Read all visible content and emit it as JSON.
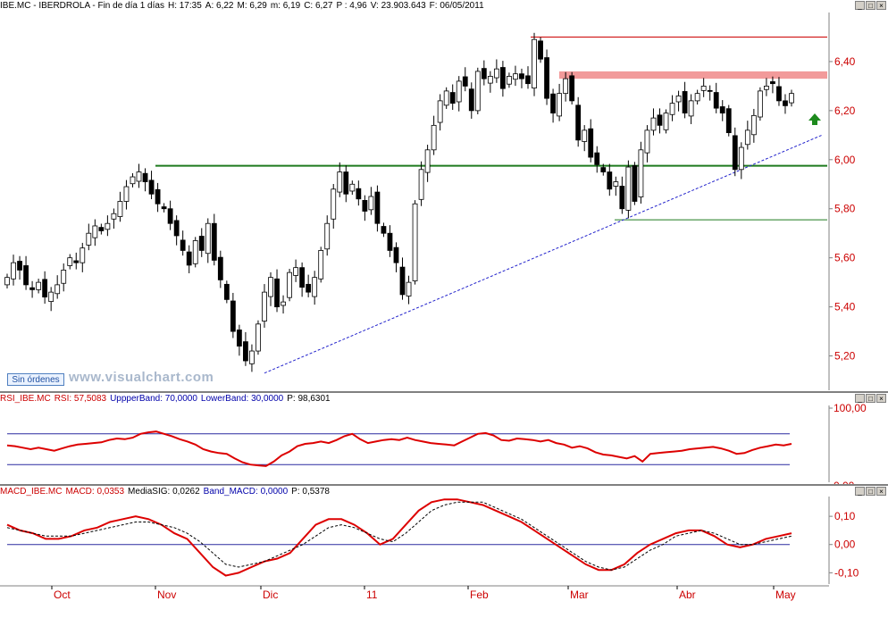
{
  "price_panel": {
    "header": [
      "IBE.MC - IBERDROLA - Fin de día 1 días",
      "H: 17:35",
      "A: 6,22",
      "M: 6,29",
      "m: 6,19",
      "C: 6,27",
      "P : 4,96",
      "V: 23.903.643",
      "F: 06/05/2011"
    ],
    "badge": "Sin órdenes",
    "watermark": "www.visualchart.com"
  },
  "rsi_panel": {
    "header": [
      "RSI_IBE.MC",
      "RSI: 57,5083",
      "UppperBand: 70,0000",
      "LowerBand: 30,0000",
      "P: 98,6301"
    ]
  },
  "macd_panel": {
    "header": [
      "MACD_IBE.MC",
      "MACD: 0,0353",
      "MediaSIG: 0,0262",
      "Band_MACD: 0,0000",
      "P: 0,5378"
    ]
  },
  "window_buttons": [
    "_",
    "□",
    "×"
  ],
  "colors": {
    "up": "#ffffff",
    "down": "#000000",
    "axis_text": "#cc0000",
    "support": "#1d7a1d",
    "resistance_fill": "#f29a9a",
    "trend": "#2222cc",
    "rsi": "#dd0000",
    "macd": "#dd0000",
    "band": "#2a2aa0"
  },
  "chart_data": [
    {
      "type": "candlestick",
      "title": "IBE.MC - IBERDROLA - Fin de día 1 días",
      "x_tick_labels": [
        "Oct",
        "Nov",
        "Dic",
        "11",
        "Feb",
        "Mar",
        "Abr",
        "May"
      ],
      "y_tick_labels": [
        "5,20",
        "5,40",
        "5,60",
        "5,80",
        "6,00",
        "6,20",
        "6,40"
      ],
      "ylim": [
        5.06,
        6.6
      ],
      "series_close": [
        5.52,
        5.58,
        5.55,
        5.49,
        5.47,
        5.5,
        5.44,
        5.46,
        5.49,
        5.55,
        5.6,
        5.58,
        5.64,
        5.7,
        5.73,
        5.71,
        5.74,
        5.78,
        5.83,
        5.89,
        5.93,
        5.95,
        5.91,
        5.86,
        5.82,
        5.8,
        5.74,
        5.69,
        5.63,
        5.57,
        5.67,
        5.63,
        5.74,
        5.59,
        5.51,
        5.43,
        5.3,
        5.24,
        5.18,
        5.22,
        5.33,
        5.46,
        5.52,
        5.4,
        5.42,
        5.54,
        5.56,
        5.48,
        5.46,
        5.52,
        5.63,
        5.74,
        5.88,
        5.95,
        5.86,
        5.9,
        5.84,
        5.79,
        5.85,
        5.74,
        5.7,
        5.63,
        5.58,
        5.45,
        5.5,
        5.82,
        5.96,
        6.04,
        6.14,
        6.24,
        6.28,
        6.23,
        6.32,
        6.3,
        6.2,
        6.36,
        6.33,
        6.34,
        6.37,
        6.29,
        6.34,
        6.35,
        6.33,
        6.31,
        6.49,
        6.41,
        6.25,
        6.19,
        6.27,
        6.33,
        6.24,
        6.08,
        6.12,
        6.01,
        5.98,
        5.95,
        5.88,
        5.91,
        5.8,
        5.97,
        5.83,
        6.04,
        6.12,
        6.17,
        6.14,
        6.19,
        6.23,
        6.26,
        6.19,
        6.24,
        6.27,
        6.3,
        6.28,
        6.21,
        6.19,
        6.11,
        5.96,
        6.05,
        6.12,
        6.18,
        6.28,
        6.3,
        6.31,
        6.24,
        6.22,
        6.27
      ],
      "annotations": {
        "resistance_band": [
          6.33,
          6.36
        ],
        "upper_line": 6.5,
        "support_line": 5.975,
        "lower_line": 5.755
      },
      "grid": false,
      "legend": "none"
    },
    {
      "type": "line",
      "title": "RSI_IBE.MC",
      "y_tick_labels": [
        "100,00",
        "0,00"
      ],
      "ylim": [
        0,
        100
      ],
      "bands": [
        70,
        30
      ],
      "series": [
        {
          "name": "RSI",
          "values": [
            55,
            54,
            52,
            50,
            52,
            50,
            48,
            51,
            54,
            56,
            57,
            58,
            59,
            62,
            64,
            63,
            65,
            70,
            72,
            73,
            70,
            67,
            63,
            60,
            56,
            50,
            47,
            45,
            44,
            38,
            33,
            30,
            29,
            28,
            34,
            42,
            47,
            54,
            57,
            58,
            60,
            58,
            62,
            67,
            70,
            63,
            58,
            60,
            62,
            63,
            62,
            65,
            62,
            60,
            58,
            57,
            56,
            55,
            60,
            65,
            70,
            71,
            68,
            62,
            61,
            64,
            63,
            62,
            60,
            62,
            58,
            56,
            52,
            54,
            51,
            46,
            43,
            42,
            40,
            38,
            41,
            34,
            44,
            45,
            46,
            47,
            48,
            50,
            51,
            52,
            53,
            51,
            48,
            44,
            45,
            49,
            52,
            54,
            56,
            55,
            57
          ]
        }
      ]
    },
    {
      "type": "line",
      "title": "MACD_IBE.MC",
      "y_tick_labels": [
        "0,10",
        "0,00",
        "-0,10"
      ],
      "ylim": [
        -0.14,
        0.17
      ],
      "band": 0.0,
      "series": [
        {
          "name": "MACD",
          "values": [
            0.07,
            0.05,
            0.04,
            0.02,
            0.02,
            0.03,
            0.05,
            0.06,
            0.08,
            0.09,
            0.1,
            0.09,
            0.07,
            0.04,
            0.02,
            -0.03,
            -0.08,
            -0.11,
            -0.1,
            -0.08,
            -0.06,
            -0.05,
            -0.03,
            0.02,
            0.07,
            0.09,
            0.09,
            0.07,
            0.04,
            0.0,
            0.02,
            0.07,
            0.12,
            0.15,
            0.16,
            0.16,
            0.15,
            0.14,
            0.12,
            0.1,
            0.08,
            0.05,
            0.02,
            -0.01,
            -0.04,
            -0.07,
            -0.09,
            -0.09,
            -0.07,
            -0.03,
            0.0,
            0.02,
            0.04,
            0.05,
            0.05,
            0.03,
            0.0,
            -0.01,
            0.0,
            0.02,
            0.03,
            0.04
          ]
        },
        {
          "name": "MediaSIG",
          "values": [
            0.06,
            0.05,
            0.04,
            0.03,
            0.03,
            0.03,
            0.04,
            0.05,
            0.06,
            0.07,
            0.08,
            0.08,
            0.07,
            0.06,
            0.04,
            0.01,
            -0.03,
            -0.07,
            -0.08,
            -0.07,
            -0.06,
            -0.04,
            -0.02,
            0.0,
            0.03,
            0.06,
            0.07,
            0.06,
            0.04,
            0.02,
            0.01,
            0.04,
            0.08,
            0.12,
            0.14,
            0.15,
            0.15,
            0.15,
            0.13,
            0.11,
            0.09,
            0.06,
            0.03,
            0.0,
            -0.03,
            -0.06,
            -0.08,
            -0.09,
            -0.08,
            -0.05,
            -0.02,
            0.0,
            0.03,
            0.04,
            0.05,
            0.04,
            0.02,
            0.0,
            0.0,
            0.01,
            0.02,
            0.03
          ]
        }
      ]
    }
  ]
}
